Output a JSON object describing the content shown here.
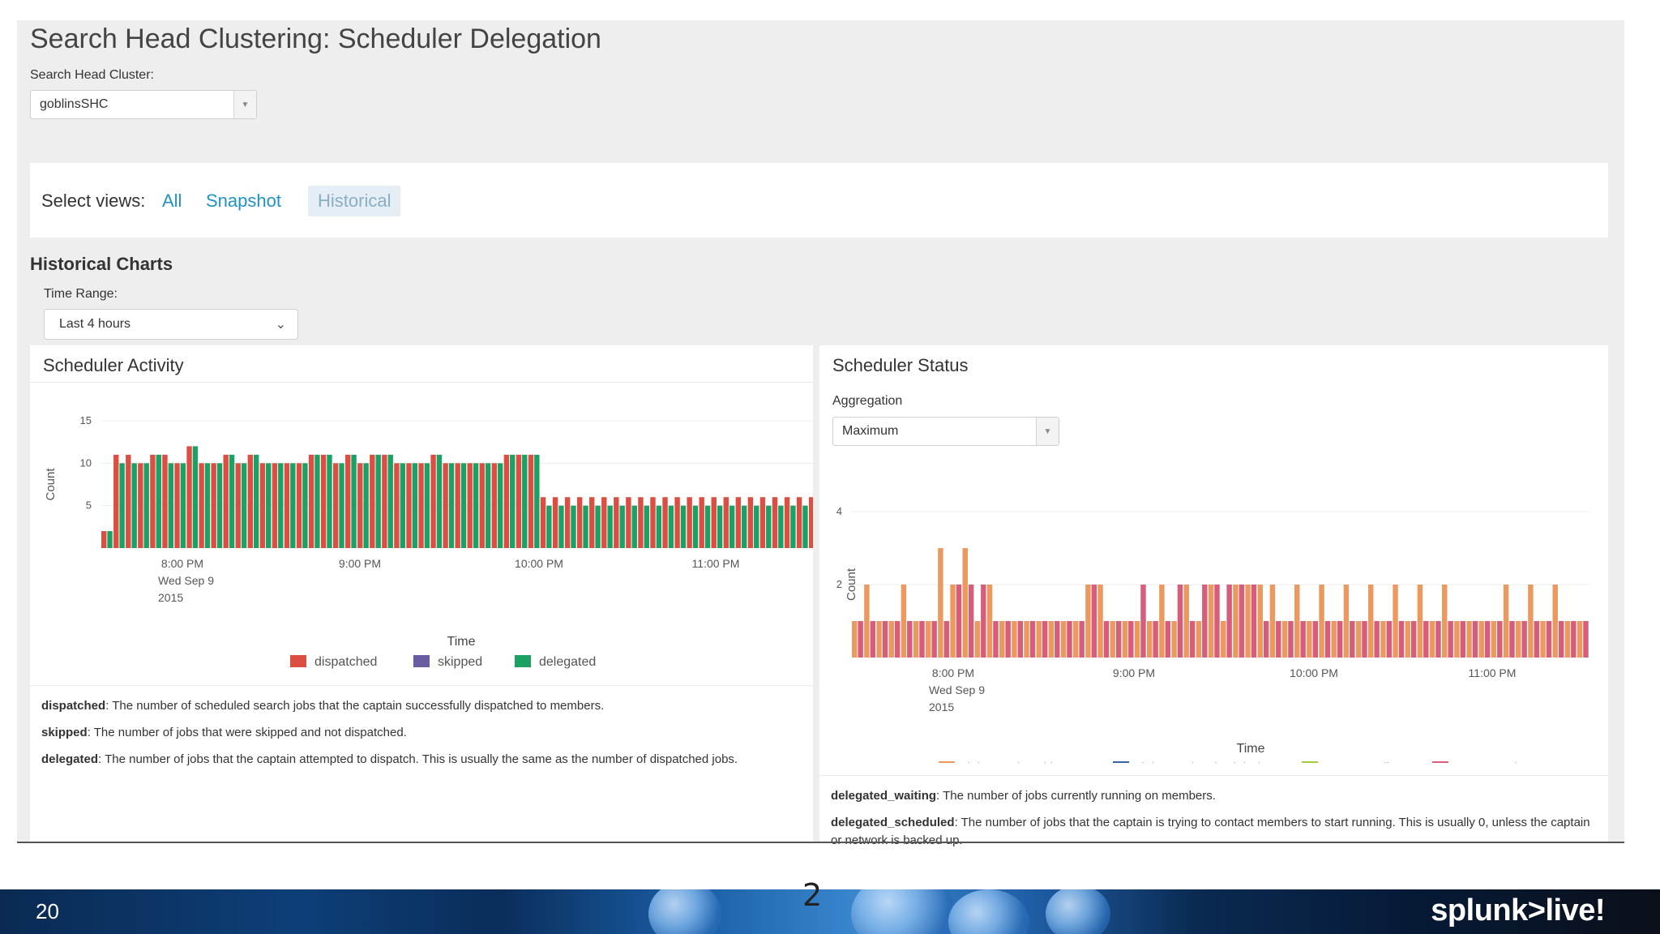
{
  "page_title": "Search Head Clustering: Scheduler Delegation",
  "cluster_field": {
    "label": "Search Head Cluster:",
    "value": "goblinsSHC"
  },
  "views": {
    "label": "Select views:",
    "items": [
      "All",
      "Snapshot",
      "Historical"
    ],
    "active": "Historical"
  },
  "section_title": "Historical Charts",
  "time_range": {
    "label": "Time Range:",
    "value": "Last 4 hours"
  },
  "activity_panel": {
    "title": "Scheduler Activity",
    "descriptions": [
      {
        "term": "dispatched",
        "text": ": The number of scheduled search jobs that the captain successfully dispatched to members."
      },
      {
        "term": "skipped",
        "text": ": The number of jobs that were skipped and not dispatched."
      },
      {
        "term": "delegated",
        "text": ": The number of jobs that the captain attempted to dispatch. This is usually the same as the number of dispatched jobs."
      }
    ]
  },
  "status_panel": {
    "title": "Scheduler Status",
    "aggregation": {
      "label": "Aggregation",
      "value": "Maximum"
    },
    "descriptions": [
      {
        "term": "delegated_waiting",
        "text": ": The number of jobs currently running on members."
      },
      {
        "term": "delegated_scheduled",
        "text": ": The number of jobs that the captain is trying to contact members to start running. This is usually 0, unless the captain or network is backed up."
      }
    ]
  },
  "chart_data": [
    {
      "type": "bar",
      "title": "Scheduler Activity",
      "xlabel": "Time",
      "ylabel": "Count",
      "ylim": [
        0,
        15
      ],
      "yticks": [
        5,
        10,
        15
      ],
      "xticks": [
        {
          "lines": [
            "8:00 PM",
            "Wed Sep 9",
            "2015"
          ]
        },
        {
          "lines": [
            "9:00 PM"
          ]
        },
        {
          "lines": [
            "10:00 PM"
          ]
        },
        {
          "lines": [
            "11:00 PM"
          ]
        }
      ],
      "x_start": "7:36 PM",
      "x_interval_minutes": 5,
      "series": [
        {
          "name": "dispatched",
          "color": "#dc4e41",
          "values": [
            2,
            11,
            11,
            10,
            11,
            11,
            10,
            12,
            10,
            10,
            11,
            10,
            11,
            10,
            10,
            10,
            10,
            11,
            11,
            10,
            11,
            10,
            11,
            11,
            10,
            10,
            10,
            11,
            10,
            10,
            10,
            10,
            10,
            11,
            11,
            11,
            6,
            6,
            6,
            6,
            6,
            6,
            6,
            6,
            6,
            6,
            6,
            6,
            6,
            6,
            6,
            6,
            6,
            6,
            6,
            6,
            6,
            6,
            6
          ]
        },
        {
          "name": "skipped",
          "color": "#6a5c9e",
          "values": []
        },
        {
          "name": "delegated",
          "color": "#1ca164",
          "values": [
            2,
            10,
            10,
            10,
            11,
            10,
            10,
            12,
            10,
            10,
            11,
            10,
            11,
            10,
            10,
            10,
            10,
            11,
            11,
            10,
            11,
            10,
            11,
            11,
            10,
            10,
            10,
            11,
            10,
            10,
            10,
            10,
            10,
            11,
            11,
            11,
            5,
            5,
            5,
            5,
            5,
            5,
            5,
            5,
            5,
            5,
            5,
            5,
            5,
            5,
            5,
            5,
            5,
            5,
            5,
            5,
            5,
            5,
            5
          ]
        }
      ],
      "legend": "bottom"
    },
    {
      "type": "bar",
      "title": "Scheduler Status",
      "xlabel": "Time",
      "ylabel": "Count",
      "ylim": [
        0,
        4
      ],
      "yticks": [
        2,
        4
      ],
      "xticks": [
        {
          "lines": [
            "8:00 PM",
            "Wed Sep 9",
            "2015"
          ]
        },
        {
          "lines": [
            "9:00 PM"
          ]
        },
        {
          "lines": [
            "10:00 PM"
          ]
        },
        {
          "lines": [
            "11:00 PM"
          ]
        }
      ],
      "x_start": "7:44 PM",
      "x_interval_minutes": 2.5,
      "series": [
        {
          "name": "delegated_waiting",
          "color": "#ec9960",
          "values": [
            1,
            2,
            1,
            1,
            2,
            1,
            1,
            3,
            2,
            3,
            1,
            2,
            1,
            1,
            1,
            1,
            1,
            1,
            1,
            2,
            2,
            1,
            1,
            1,
            1,
            2,
            1,
            2,
            1,
            2,
            1,
            2,
            2,
            2,
            2,
            1,
            2,
            1,
            2,
            1,
            2,
            1,
            2,
            1,
            2,
            1,
            2,
            1,
            2,
            1,
            1,
            1,
            1,
            2,
            1,
            2,
            1,
            2,
            1,
            1
          ]
        },
        {
          "name": "delegated_scheduled",
          "color": "#3863a0",
          "values": []
        },
        {
          "name": "max_pending",
          "color": "#a2cc3e",
          "values": []
        },
        {
          "name": "max_running",
          "color": "#d85d7a",
          "values": [
            1,
            1,
            1,
            1,
            1,
            1,
            1,
            1,
            2,
            2,
            2,
            1,
            1,
            1,
            1,
            1,
            1,
            1,
            1,
            2,
            1,
            1,
            1,
            2,
            1,
            1,
            2,
            1,
            2,
            2,
            2,
            2,
            2,
            1,
            1,
            1,
            1,
            1,
            1,
            1,
            1,
            1,
            1,
            1,
            1,
            1,
            1,
            1,
            1,
            1,
            1,
            1,
            1,
            1,
            1,
            1,
            1,
            1,
            1,
            1
          ]
        }
      ],
      "legend": "bottom"
    }
  ],
  "footer": {
    "slide_number": "20",
    "brand": "splunk>live!",
    "center_number": "2"
  }
}
